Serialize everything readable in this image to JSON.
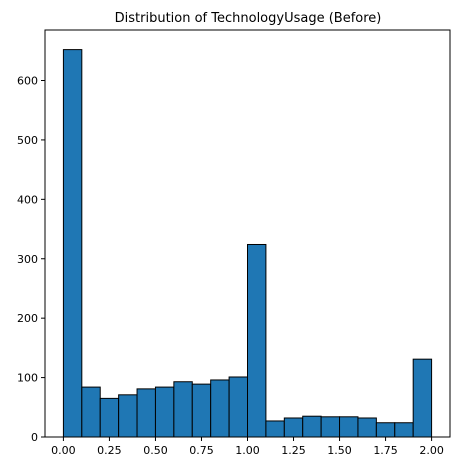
{
  "chart_data": {
    "type": "bar",
    "subtype": "histogram",
    "title": "Distribution of TechnologyUsage (Before)",
    "xlabel": "",
    "ylabel": "",
    "bin_edges": [
      0.0,
      0.1,
      0.2,
      0.3,
      0.4,
      0.5,
      0.6,
      0.7,
      0.8,
      0.9,
      1.0,
      1.1,
      1.2,
      1.3,
      1.4,
      1.5,
      1.6,
      1.7,
      1.8,
      1.9,
      2.0
    ],
    "values": [
      652,
      84,
      65,
      71,
      81,
      84,
      93,
      89,
      96,
      101,
      324,
      27,
      32,
      35,
      34,
      34,
      32,
      24,
      24,
      131
    ],
    "xlim": [
      -0.1,
      2.1
    ],
    "ylim": [
      0,
      685
    ],
    "xticks": [
      "0.00",
      "0.25",
      "0.50",
      "0.75",
      "1.00",
      "1.25",
      "1.50",
      "1.75",
      "2.00"
    ],
    "yticks": [
      "0",
      "100",
      "200",
      "300",
      "400",
      "500",
      "600"
    ],
    "grid": false,
    "colors": {
      "bar_fill": "#1f77b4",
      "bar_edge": "#000000",
      "axis": "#000000"
    }
  }
}
